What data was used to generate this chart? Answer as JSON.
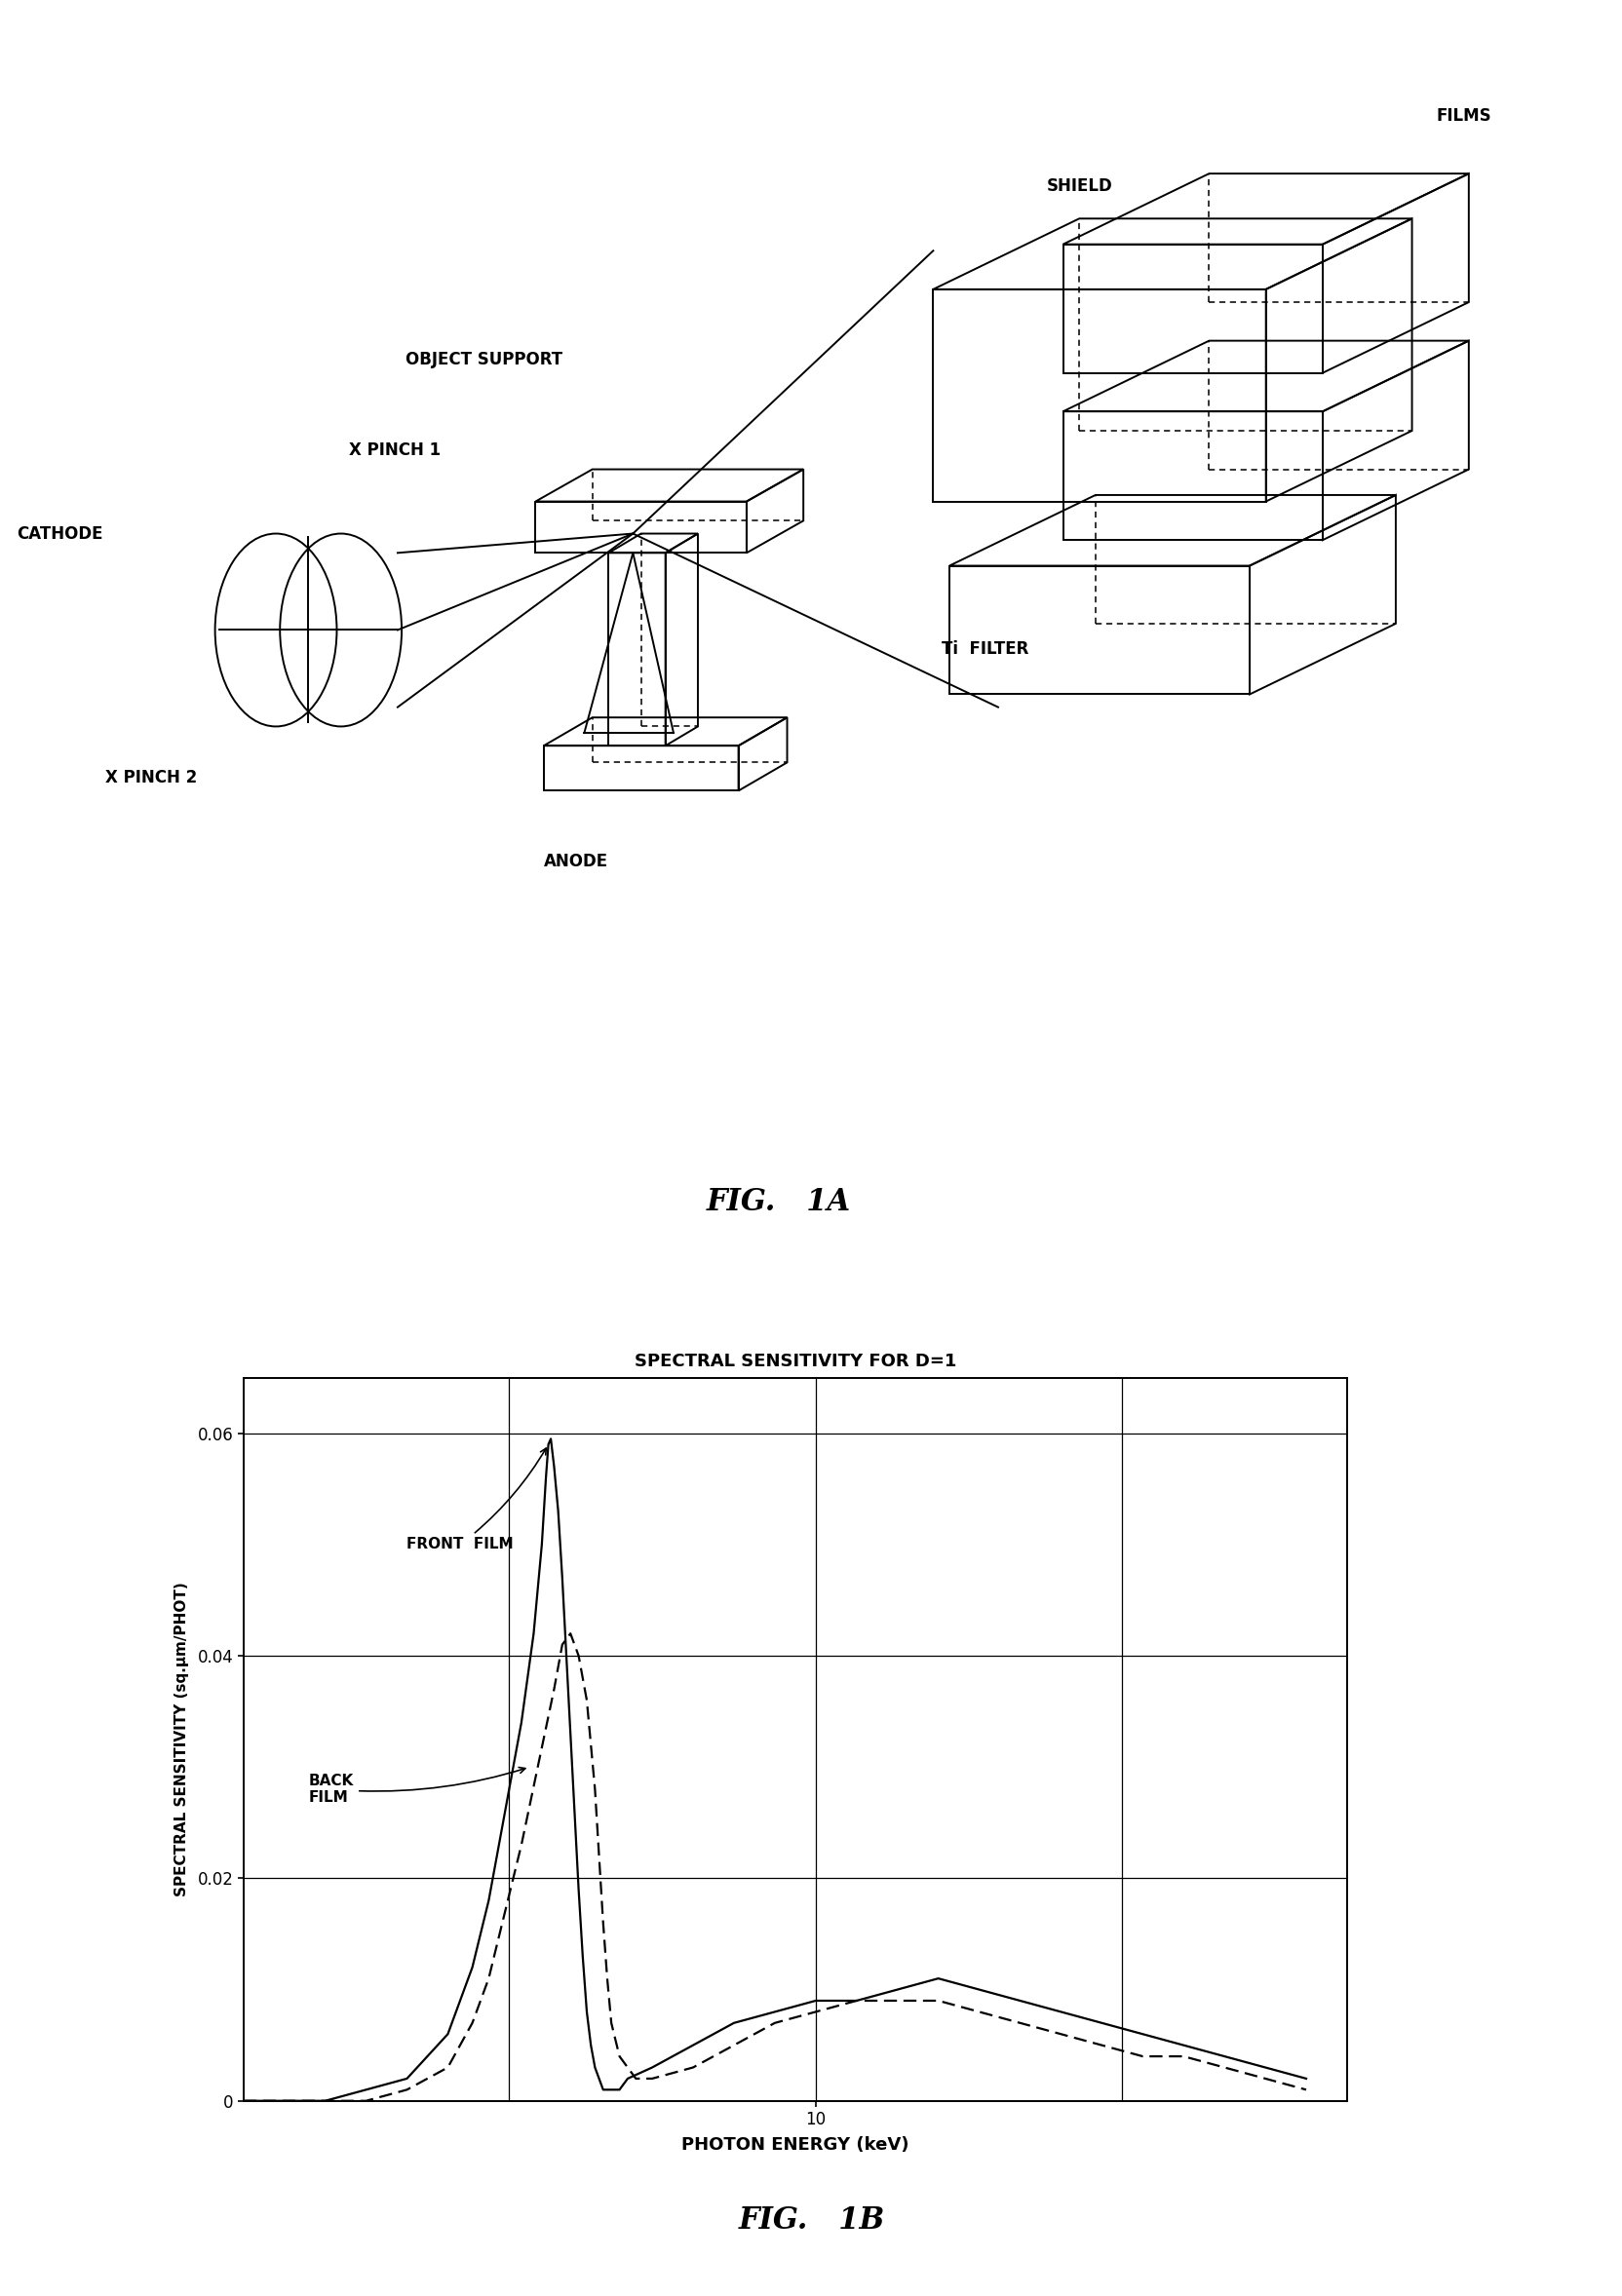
{
  "fig_width": 16.65,
  "fig_height": 23.56,
  "background_color": "#ffffff",
  "fig1a_title": "FIG.   1A",
  "fig1b_title": "FIG.   1B",
  "labels": {
    "films": "FILMS",
    "shield": "SHIELD",
    "object_support": "OBJECT SUPPORT",
    "cathode": "CATHODE",
    "x_pinch1": "X PINCH 1",
    "x_pinch2": "X PINCH 2",
    "anode": "ANODE",
    "ti_filter": "Ti  FILTER"
  },
  "graph_title": "SPECTRAL SENSITIVITY FOR D=1",
  "ylabel": "SPECTRAL SENSITIVITY (sq.μm/PHOT)",
  "xlabel": "PHOTON ENERGY (keV)",
  "yticks": [
    0,
    0.02,
    0.04,
    0.06
  ],
  "xtick_label": "10",
  "front_film_label": "FRONT  FILM",
  "back_film_label": "BACK\nFILM"
}
